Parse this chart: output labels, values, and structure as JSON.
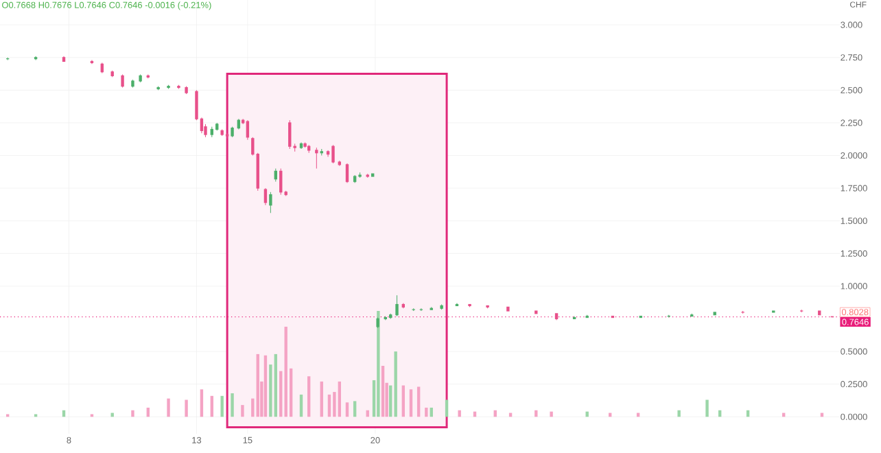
{
  "chart_data": {
    "type": "candlestick",
    "ylabel": "CHF",
    "annotations": [
      "O0.7668 H0.7676 L0.7646 C0.7646 -0.0016 (-0.21%)",
      "0.8028"
    ],
    "ref_lines": [
      {
        "axis": "y",
        "value": 0.7646,
        "label": "0.7646",
        "color": "#e91e7a",
        "line_style": "dotted"
      }
    ],
    "bands": [
      {
        "axis": "x",
        "from": 14.2,
        "to": 22.8,
        "color": "#e0287a"
      }
    ],
    "xlim": [
      5.3,
      38.2
    ],
    "xticks": [
      8,
      13,
      15,
      20
    ],
    "ylim": [
      -0.13,
      3.19
    ],
    "yticks": [
      {
        "value": 0,
        "label": "0.0000"
      },
      {
        "value": 0.25,
        "label": "0.2500"
      },
      {
        "value": 0.5,
        "label": "0.5000"
      },
      {
        "value": 1,
        "label": "1.0000"
      },
      {
        "value": 1.25,
        "label": "1.2500"
      },
      {
        "value": 1.5,
        "label": "1.5000"
      },
      {
        "value": 1.75,
        "label": "1.7500"
      },
      {
        "value": 2,
        "label": "2.0000"
      },
      {
        "value": 2.25,
        "label": "2.250"
      },
      {
        "value": 2.5,
        "label": "2.500"
      },
      {
        "value": 2.75,
        "label": "2.750"
      },
      {
        "value": 3,
        "label": "3.000"
      }
    ],
    "grid": true,
    "series": [
      {
        "x": [
          5.6,
          6.7,
          7.8,
          8.9,
          9.3,
          9.7,
          10.1,
          10.5,
          10.8,
          11.1,
          11.5,
          11.9,
          12.3,
          12.6,
          13.0,
          13.2,
          13.35,
          13.6,
          13.8,
          14.0,
          14.2,
          14.4,
          14.65,
          14.82,
          15.0,
          15.2,
          15.4,
          15.7,
          15.9,
          16.1,
          16.3,
          16.5,
          16.65,
          16.85,
          17.1,
          17.25,
          17.4,
          17.7,
          17.9,
          18.15,
          18.35,
          18.6,
          18.9,
          19.2,
          19.4,
          19.7,
          19.9,
          20.1,
          20.4,
          20.6,
          20.85,
          21.1,
          21.5,
          21.8,
          22.2,
          22.6,
          23.2,
          23.7,
          24.4,
          25.2,
          26.3,
          27.1,
          27.8,
          28.3,
          29.3,
          30.4,
          31.5,
          32.4,
          33.3,
          34.4,
          35.6,
          36.7,
          37.4,
          37.9
        ],
        "ohlc": [
          [
            2.74,
            2.75,
            2.73,
            2.74
          ],
          [
            2.74,
            2.76,
            2.73,
            2.75
          ],
          [
            2.75,
            2.76,
            2.72,
            2.72
          ],
          [
            2.72,
            2.73,
            2.7,
            2.71
          ],
          [
            2.7,
            2.71,
            2.63,
            2.64
          ],
          [
            2.64,
            2.65,
            2.6,
            2.61
          ],
          [
            2.61,
            2.62,
            2.52,
            2.53
          ],
          [
            2.53,
            2.58,
            2.52,
            2.57
          ],
          [
            2.57,
            2.62,
            2.56,
            2.61
          ],
          [
            2.61,
            2.62,
            2.59,
            2.6
          ],
          [
            2.51,
            2.53,
            2.5,
            2.52
          ],
          [
            2.52,
            2.54,
            2.51,
            2.53
          ],
          [
            2.53,
            2.54,
            2.51,
            2.52
          ],
          [
            2.52,
            2.53,
            2.47,
            2.48
          ],
          [
            2.49,
            2.5,
            2.27,
            2.28
          ],
          [
            2.28,
            2.29,
            2.17,
            2.19
          ],
          [
            2.22,
            2.24,
            2.14,
            2.16
          ],
          [
            2.16,
            2.22,
            2.14,
            2.2
          ],
          [
            2.2,
            2.25,
            2.19,
            2.24
          ],
          [
            2.19,
            2.2,
            2.15,
            2.16
          ],
          [
            2.16,
            2.17,
            2.13,
            2.15
          ],
          [
            2.15,
            2.22,
            2.14,
            2.21
          ],
          [
            2.21,
            2.28,
            2.2,
            2.27
          ],
          [
            2.27,
            2.28,
            2.24,
            2.25
          ],
          [
            2.26,
            2.27,
            2.12,
            2.14
          ],
          [
            2.13,
            2.14,
            2.0,
            2.01
          ],
          [
            2.01,
            2.02,
            1.73,
            1.75
          ],
          [
            1.74,
            1.75,
            1.62,
            1.64
          ],
          [
            1.62,
            1.72,
            1.56,
            1.7
          ],
          [
            1.82,
            1.9,
            1.8,
            1.88
          ],
          [
            1.88,
            1.9,
            1.7,
            1.72
          ],
          [
            1.72,
            1.73,
            1.69,
            1.7
          ],
          [
            2.25,
            2.27,
            2.05,
            2.07
          ],
          [
            2.07,
            2.09,
            2.03,
            2.06
          ],
          [
            2.06,
            2.1,
            2.05,
            2.09
          ],
          [
            2.09,
            2.1,
            2.06,
            2.07
          ],
          [
            2.07,
            2.08,
            2.02,
            2.04
          ],
          [
            2.04,
            2.06,
            1.9,
            2.02
          ],
          [
            2.02,
            2.05,
            2.0,
            2.03
          ],
          [
            2.03,
            2.04,
            1.99,
            2.01
          ],
          [
            2.07,
            2.08,
            1.94,
            1.95
          ],
          [
            1.95,
            1.96,
            1.92,
            1.93
          ],
          [
            1.93,
            1.94,
            1.79,
            1.8
          ],
          [
            1.8,
            1.85,
            1.79,
            1.84
          ],
          [
            1.84,
            1.87,
            1.83,
            1.85
          ],
          [
            1.85,
            1.86,
            1.83,
            1.84
          ],
          [
            1.84,
            1.86,
            1.84,
            1.86
          ],
          [
            0.69,
            0.76,
            0.68,
            0.75
          ],
          [
            0.75,
            0.77,
            0.74,
            0.76
          ],
          [
            0.76,
            0.79,
            0.75,
            0.78
          ],
          [
            0.78,
            0.93,
            0.77,
            0.86
          ],
          [
            0.86,
            0.87,
            0.83,
            0.84
          ],
          [
            0.82,
            0.83,
            0.81,
            0.82
          ],
          [
            0.82,
            0.83,
            0.81,
            0.82
          ],
          [
            0.82,
            0.84,
            0.82,
            0.83
          ],
          [
            0.83,
            0.86,
            0.82,
            0.85
          ],
          [
            0.85,
            0.87,
            0.85,
            0.86
          ],
          [
            0.86,
            0.86,
            0.84,
            0.85
          ],
          [
            0.85,
            0.85,
            0.83,
            0.84
          ],
          [
            0.84,
            0.84,
            0.81,
            0.81
          ],
          [
            0.81,
            0.81,
            0.79,
            0.79
          ],
          [
            0.79,
            0.79,
            0.74,
            0.75
          ],
          [
            0.75,
            0.77,
            0.75,
            0.76
          ],
          [
            0.76,
            0.78,
            0.76,
            0.77
          ],
          [
            0.77,
            0.77,
            0.76,
            0.76
          ],
          [
            0.76,
            0.77,
            0.76,
            0.77
          ],
          [
            0.77,
            0.78,
            0.76,
            0.77
          ],
          [
            0.77,
            0.79,
            0.77,
            0.78
          ],
          [
            0.78,
            0.8,
            0.78,
            0.8
          ],
          [
            0.8,
            0.81,
            0.79,
            0.8
          ],
          [
            0.8,
            0.81,
            0.8,
            0.81
          ],
          [
            0.81,
            0.82,
            0.8,
            0.81
          ],
          [
            0.81,
            0.81,
            0.78,
            0.78
          ],
          [
            0.7668,
            0.7676,
            0.7646,
            0.7646
          ]
        ],
        "colors": [
          "#4caf6a",
          "#4caf6a",
          "#e8508a",
          "#e8508a",
          "#e8508a",
          "#e8508a",
          "#e8508a",
          "#4caf6a",
          "#4caf6a",
          "#e8508a",
          "#4caf6a",
          "#4caf6a",
          "#e8508a",
          "#e8508a",
          "#e8508a",
          "#e8508a",
          "#e8508a",
          "#4caf6a",
          "#4caf6a",
          "#e8508a",
          "#e8508a",
          "#4caf6a",
          "#4caf6a",
          "#e8508a",
          "#e8508a",
          "#e8508a",
          "#e8508a",
          "#e8508a",
          "#4caf6a",
          "#4caf6a",
          "#e8508a",
          "#e8508a",
          "#e8508a",
          "#e8508a",
          "#4caf6a",
          "#e8508a",
          "#e8508a",
          "#e8508a",
          "#4caf6a",
          "#e8508a",
          "#e8508a",
          "#e8508a",
          "#e8508a",
          "#4caf6a",
          "#4caf6a",
          "#e8508a",
          "#4caf6a",
          "#4caf6a",
          "#4caf6a",
          "#4caf6a",
          "#4caf6a",
          "#e8508a",
          "#4caf6a",
          "#4caf6a",
          "#4caf6a",
          "#4caf6a",
          "#4caf6a",
          "#e8508a",
          "#e8508a",
          "#e8508a",
          "#e8508a",
          "#e8508a",
          "#4caf6a",
          "#4caf6a",
          "#e8508a",
          "#4caf6a",
          "#4caf6a",
          "#4caf6a",
          "#4caf6a",
          "#e8508a",
          "#4caf6a",
          "#e8508a",
          "#e8508a",
          "#e8508a"
        ]
      },
      {
        "type": "bar",
        "x": [
          5.6,
          6.7,
          7.8,
          8.9,
          9.7,
          10.5,
          11.1,
          11.9,
          12.6,
          13.2,
          13.6,
          14.0,
          14.4,
          14.8,
          15.2,
          15.4,
          15.55,
          15.7,
          15.9,
          16.1,
          16.3,
          16.5,
          16.7,
          17.1,
          17.4,
          17.9,
          18.2,
          18.4,
          18.6,
          18.9,
          19.2,
          19.7,
          19.95,
          20.12,
          20.3,
          20.45,
          20.6,
          20.8,
          21.1,
          21.4,
          21.7,
          22.0,
          22.2,
          22.8,
          23.3,
          23.9,
          24.7,
          25.3,
          26.3,
          26.9,
          28.3,
          29.2,
          30.3,
          31.9,
          33.0,
          33.5,
          34.6,
          36.0,
          37.5
        ],
        "values": [
          0.02,
          0.02,
          0.05,
          0.02,
          0.03,
          0.05,
          0.07,
          0.14,
          0.13,
          0.21,
          0.16,
          0.16,
          0.18,
          0.09,
          0.14,
          0.48,
          0.27,
          0.47,
          0.4,
          0.48,
          0.35,
          0.69,
          0.37,
          0.17,
          0.31,
          0.27,
          0.17,
          0.19,
          0.27,
          0.11,
          0.12,
          0.05,
          0.28,
          0.81,
          0.39,
          0.26,
          0.24,
          0.5,
          0.24,
          0.21,
          0.23,
          0.07,
          0.07,
          0.13,
          0.05,
          0.04,
          0.05,
          0.03,
          0.05,
          0.04,
          0.04,
          0.03,
          0.03,
          0.05,
          0.13,
          0.05,
          0.05,
          0.03,
          0.03
        ],
        "colors": [
          "#f4a3c4",
          "#9bd6a8",
          "#9bd6a8",
          "#f4a3c4",
          "#9bd6a8",
          "#f4a3c4",
          "#f4a3c4",
          "#f4a3c4",
          "#f4a3c4",
          "#f4a3c4",
          "#f4a3c4",
          "#9bd6a8",
          "#9bd6a8",
          "#f4a3c4",
          "#f4a3c4",
          "#f4a3c4",
          "#f4a3c4",
          "#f4a3c4",
          "#9bd6a8",
          "#9bd6a8",
          "#f4a3c4",
          "#f4a3c4",
          "#f4a3c4",
          "#9bd6a8",
          "#f4a3c4",
          "#f4a3c4",
          "#f4a3c4",
          "#f4a3c4",
          "#f4a3c4",
          "#f4a3c4",
          "#9bd6a8",
          "#f4a3c4",
          "#9bd6a8",
          "#9bd6a8",
          "#f4a3c4",
          "#f4a3c4",
          "#9bd6a8",
          "#9bd6a8",
          "#f4a3c4",
          "#f4a3c4",
          "#f4a3c4",
          "#f4a3c4",
          "#9bd6a8",
          "#9bd6a8",
          "#f4a3c4",
          "#f4a3c4",
          "#f4a3c4",
          "#f4a3c4",
          "#f4a3c4",
          "#f4a3c4",
          "#9bd6a8",
          "#f4a3c4",
          "#f4a3c4",
          "#9bd6a8",
          "#9bd6a8",
          "#9bd6a8",
          "#9bd6a8",
          "#f4a3c4",
          "#f4a3c4"
        ]
      }
    ]
  }
}
